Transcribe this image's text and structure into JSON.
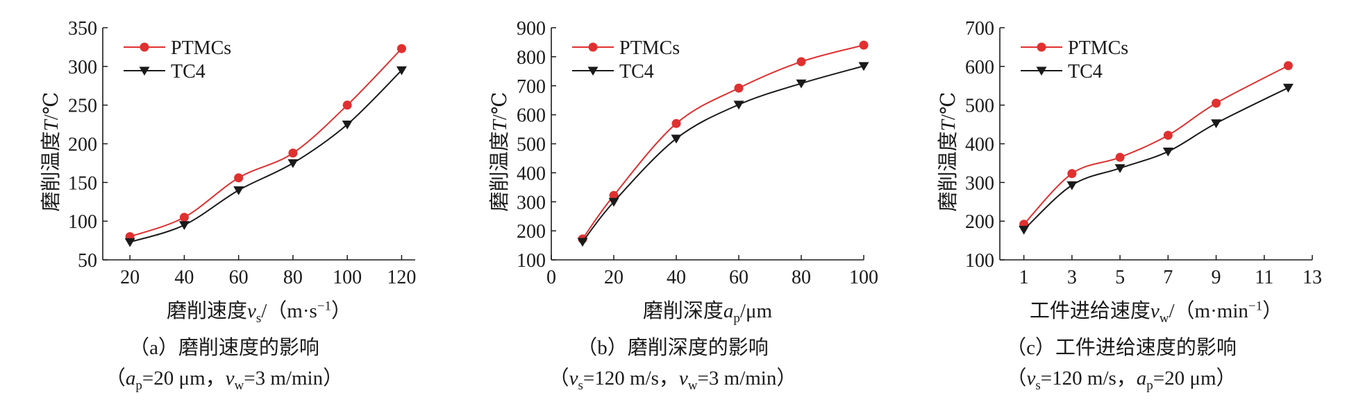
{
  "colors": {
    "ptmcs": "#e03030",
    "tc4": "#1a1a1a"
  },
  "chart_data": [
    {
      "type": "line",
      "x": [
        20,
        40,
        60,
        80,
        100,
        120
      ],
      "xlim": [
        10,
        125
      ],
      "ylim": [
        50,
        350
      ],
      "xticks": [
        "20",
        "40",
        "60",
        "80",
        "100",
        "120"
      ],
      "xtick_values": [
        20,
        40,
        60,
        80,
        100,
        120
      ],
      "yticks": [
        "50",
        "100",
        "150",
        "200",
        "250",
        "300",
        "350"
      ],
      "ytick_values": [
        50,
        100,
        150,
        200,
        250,
        300,
        350
      ],
      "ylabel": {
        "pre": "磨削温度",
        "sym": "T",
        "post": "/℃"
      },
      "xlabel": {
        "pre": "磨削速度",
        "sym": "v",
        "sub": "s",
        "post": "/（m·s",
        "sup": "−1",
        "tail": "）"
      },
      "caption": "（a）磨削速度的影响",
      "subcaption": [
        {
          "t": "（",
          "st": "n"
        },
        {
          "t": "a",
          "st": "i"
        },
        {
          "t": "p",
          "st": "sub"
        },
        {
          "t": "=20 μm，",
          "st": "n"
        },
        {
          "t": "v",
          "st": "i"
        },
        {
          "t": "w",
          "st": "sub"
        },
        {
          "t": "=3 m/min）",
          "st": "n"
        }
      ],
      "legend_position": "top-left",
      "series": [
        {
          "name": "PTMCs",
          "marker": "circle",
          "values": [
            80,
            105,
            156,
            188,
            250,
            323
          ]
        },
        {
          "name": "TC4",
          "marker": "triangle-down",
          "values": [
            73,
            95,
            140,
            175,
            225,
            295
          ]
        }
      ]
    },
    {
      "type": "line",
      "x": [
        10,
        20,
        40,
        60,
        80,
        100
      ],
      "xlim": [
        0,
        100
      ],
      "ylim": [
        100,
        900
      ],
      "xticks": [
        "0",
        "20",
        "40",
        "60",
        "80",
        "100"
      ],
      "xtick_values": [
        0,
        20,
        40,
        60,
        80,
        100
      ],
      "yticks": [
        "100",
        "200",
        "300",
        "400",
        "500",
        "600",
        "700",
        "800",
        "900"
      ],
      "ytick_values": [
        100,
        200,
        300,
        400,
        500,
        600,
        700,
        800,
        900
      ],
      "ylabel": {
        "pre": "磨削温度",
        "sym": "T",
        "post": "/℃"
      },
      "xlabel": {
        "pre": "磨削深度",
        "sym": "a",
        "sub": "p",
        "post": "/μm",
        "sup": "",
        "tail": ""
      },
      "caption": "（b）磨削深度的影响",
      "subcaption": [
        {
          "t": "（",
          "st": "n"
        },
        {
          "t": "v",
          "st": "i"
        },
        {
          "t": "s",
          "st": "sub"
        },
        {
          "t": "=120 m/s，",
          "st": "n"
        },
        {
          "t": "v",
          "st": "i"
        },
        {
          "t": "w",
          "st": "sub"
        },
        {
          "t": "=3 m/min）",
          "st": "n"
        }
      ],
      "legend_position": "top-left",
      "series": [
        {
          "name": "PTMCs",
          "marker": "circle",
          "values": [
            172,
            322,
            570,
            692,
            783,
            840
          ]
        },
        {
          "name": "TC4",
          "marker": "triangle-down",
          "values": [
            162,
            300,
            518,
            635,
            708,
            768
          ]
        }
      ]
    },
    {
      "type": "line",
      "x": [
        1,
        3,
        5,
        7,
        9,
        12
      ],
      "xlim": [
        0,
        13
      ],
      "ylim": [
        100,
        700
      ],
      "xticks": [
        "1",
        "3",
        "5",
        "7",
        "9",
        "11",
        "13"
      ],
      "xtick_values": [
        1,
        3,
        5,
        7,
        9,
        11,
        13
      ],
      "yticks": [
        "100",
        "200",
        "300",
        "400",
        "500",
        "600",
        "700"
      ],
      "ytick_values": [
        100,
        200,
        300,
        400,
        500,
        600,
        700
      ],
      "ylabel": {
        "pre": "磨削温度",
        "sym": "T",
        "post": "/℃"
      },
      "xlabel": {
        "pre": "工件进给速度",
        "sym": "v",
        "sub": "w",
        "post": "/（m·min",
        "sup": "−1",
        "tail": "）"
      },
      "caption": "（c）工件进给速度的影响",
      "subcaption": [
        {
          "t": "（",
          "st": "n"
        },
        {
          "t": "v",
          "st": "i"
        },
        {
          "t": "s",
          "st": "sub"
        },
        {
          "t": "=120 m/s，",
          "st": "n"
        },
        {
          "t": "a",
          "st": "i"
        },
        {
          "t": "p",
          "st": "sub"
        },
        {
          "t": "=20 μm）",
          "st": "n"
        }
      ],
      "legend_position": "top-left",
      "series": [
        {
          "name": "PTMCs",
          "marker": "circle",
          "values": [
            192,
            323,
            365,
            422,
            505,
            602
          ]
        },
        {
          "name": "TC4",
          "marker": "triangle-down",
          "values": [
            178,
            293,
            337,
            380,
            453,
            545
          ]
        }
      ]
    }
  ]
}
